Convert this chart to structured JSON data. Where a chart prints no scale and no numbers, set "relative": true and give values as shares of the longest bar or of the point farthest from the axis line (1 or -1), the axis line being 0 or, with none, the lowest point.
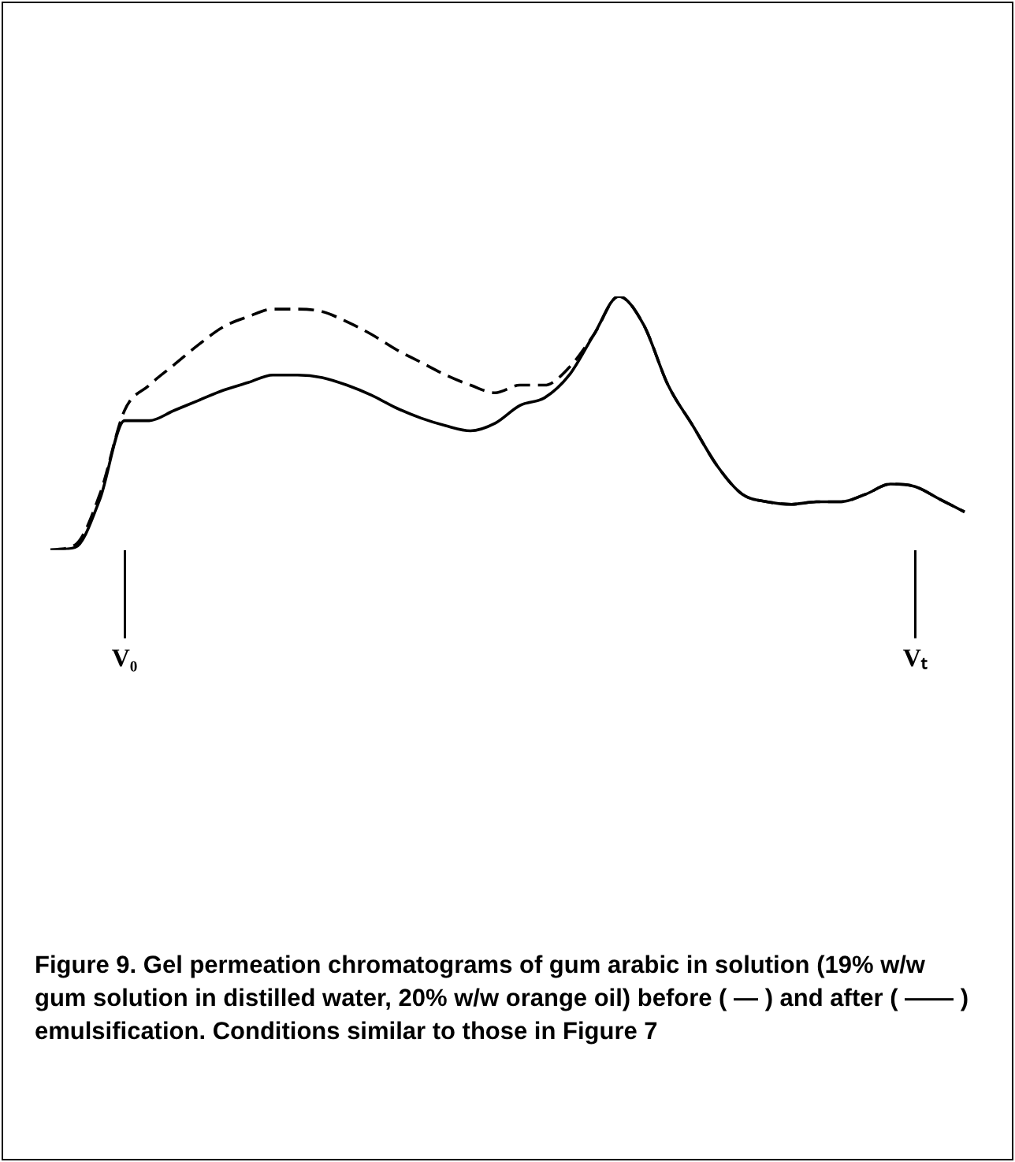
{
  "chart_data": {
    "type": "line",
    "relative": true,
    "legend": false,
    "marker": "none",
    "categories": [
      null,
      null,
      null,
      "V₀",
      null,
      null,
      null,
      null,
      null,
      null,
      null,
      null,
      null,
      null,
      null,
      null,
      null,
      null,
      null,
      null,
      null,
      null,
      null,
      null,
      null,
      null,
      null,
      null,
      null,
      null,
      null,
      null,
      null,
      null,
      null,
      "Vₜ",
      null,
      null
    ],
    "series": [
      {
        "color": "#000000",
        "line_style": "solid",
        "values": [
          0,
          0.01,
          0.2,
          0.51,
          0.51,
          0.55,
          0.59,
          0.63,
          0.66,
          0.69,
          0.69,
          0.68,
          0.65,
          0.61,
          0.56,
          0.52,
          0.49,
          0.47,
          0.5,
          0.57,
          0.6,
          0.69,
          0.85,
          1,
          0.89,
          0.65,
          0.49,
          0.33,
          0.22,
          0.19,
          0.18,
          0.19,
          0.19,
          0.22,
          0.26,
          0.25,
          0.2,
          0.15
        ]
      },
      {
        "color": "#000000",
        "line_style": "dashed",
        "values": [
          0,
          0.02,
          0.22,
          0.55,
          0.65,
          0.73,
          0.81,
          0.88,
          0.92,
          0.95,
          0.95,
          0.94,
          0.9,
          0.85,
          0.79,
          0.74,
          0.69,
          0.65,
          0.62,
          0.65,
          0.65,
          0.72,
          0.85,
          1,
          0.89,
          0.65,
          0.49,
          0.33,
          0.22,
          0.19,
          0.18,
          0.19,
          0.19,
          0.22,
          0.26,
          0.25,
          0.2,
          0.15
        ]
      }
    ],
    "annotations": [
      "Figure 9. Gel permeation chromatograms of gum arabic in solution (19% w/w gum solution in distilled water, 20% w/w orange oil) before ( — ) and after ( —— ) emulsification. Conditions similar to those in Figure 7"
    ]
  }
}
